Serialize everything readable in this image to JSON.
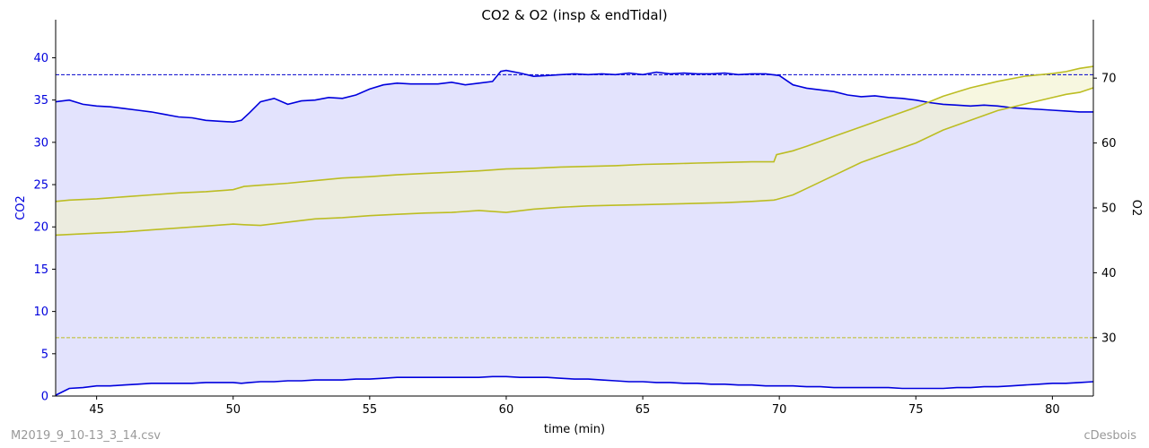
{
  "chart_data": {
    "type": "line",
    "title": "CO2 & O2 (insp & endTidal)",
    "xlabel": "time (min)",
    "ylabel_left": "CO2",
    "ylabel_right": "O2",
    "xlim": [
      43.5,
      81.5
    ],
    "ylim_left": [
      0,
      44.5
    ],
    "ylim_right": [
      21,
      79
    ],
    "x_ticks": [
      45,
      50,
      55,
      60,
      65,
      70,
      75,
      80
    ],
    "y_left_ticks": [
      0,
      5,
      10,
      15,
      20,
      25,
      30,
      35,
      40
    ],
    "y_right_ticks": [
      30,
      40,
      50,
      60,
      70
    ],
    "reference_lines": [
      {
        "axis": "left",
        "value": 38,
        "color": "#0000cc",
        "style": "dashed"
      },
      {
        "axis": "right",
        "value": 30,
        "color": "#bcbd22",
        "style": "dashed"
      }
    ],
    "series": [
      {
        "axis": "left",
        "color": "#0000dd",
        "fill": "#e3e3fd",
        "x": [
          43.5,
          44.0,
          44.5,
          45.0,
          45.5,
          46.0,
          46.5,
          47.0,
          47.5,
          48.0,
          48.5,
          49.0,
          49.5,
          50.0,
          50.3,
          50.6,
          51.0,
          51.5,
          52.0,
          52.5,
          53.0,
          53.5,
          54.0,
          54.5,
          55.0,
          55.5,
          56.0,
          56.5,
          57.0,
          57.5,
          58.0,
          58.5,
          59.0,
          59.5,
          59.8,
          60.0,
          60.5,
          61.0,
          61.5,
          62.0,
          62.5,
          63.0,
          63.5,
          64.0,
          64.5,
          65.0,
          65.5,
          66.0,
          66.5,
          67.0,
          67.5,
          68.0,
          68.5,
          69.0,
          69.5,
          70.0,
          70.5,
          71.0,
          71.5,
          72.0,
          72.5,
          73.0,
          73.5,
          74.0,
          74.5,
          75.0,
          75.5,
          76.0,
          76.5,
          77.0,
          77.5,
          78.0,
          78.5,
          79.0,
          79.5,
          80.0,
          80.5,
          81.0,
          81.5
        ],
        "upper": [
          34.8,
          35.0,
          34.5,
          34.3,
          34.2,
          34.0,
          33.8,
          33.6,
          33.3,
          33.0,
          32.9,
          32.6,
          32.5,
          32.4,
          32.6,
          33.5,
          34.8,
          35.2,
          34.5,
          34.9,
          35.0,
          35.3,
          35.2,
          35.6,
          36.3,
          36.8,
          37.0,
          36.9,
          36.9,
          36.9,
          37.1,
          36.8,
          37.0,
          37.2,
          38.4,
          38.5,
          38.2,
          37.8,
          37.9,
          38.0,
          38.1,
          38.0,
          38.1,
          38.0,
          38.2,
          38.0,
          38.3,
          38.1,
          38.2,
          38.1,
          38.1,
          38.2,
          38.0,
          38.1,
          38.1,
          37.9,
          36.8,
          36.4,
          36.2,
          36.0,
          35.6,
          35.4,
          35.5,
          35.3,
          35.2,
          35.0,
          34.7,
          34.5,
          34.4,
          34.3,
          34.4,
          34.3,
          34.1,
          34.0,
          33.9,
          33.8,
          33.7,
          33.6,
          33.6
        ],
        "lower": [
          0.1,
          0.9,
          1.0,
          1.2,
          1.2,
          1.3,
          1.4,
          1.5,
          1.5,
          1.5,
          1.5,
          1.6,
          1.6,
          1.6,
          1.5,
          1.6,
          1.7,
          1.7,
          1.8,
          1.8,
          1.9,
          1.9,
          1.9,
          2.0,
          2.0,
          2.1,
          2.2,
          2.2,
          2.2,
          2.2,
          2.2,
          2.2,
          2.2,
          2.3,
          2.3,
          2.3,
          2.2,
          2.2,
          2.2,
          2.1,
          2.0,
          2.0,
          1.9,
          1.8,
          1.7,
          1.7,
          1.6,
          1.6,
          1.5,
          1.5,
          1.4,
          1.4,
          1.3,
          1.3,
          1.2,
          1.2,
          1.2,
          1.1,
          1.1,
          1.0,
          1.0,
          1.0,
          1.0,
          1.0,
          0.9,
          0.9,
          0.9,
          0.9,
          1.0,
          1.0,
          1.1,
          1.1,
          1.2,
          1.3,
          1.4,
          1.5,
          1.5,
          1.6,
          1.7
        ]
      },
      {
        "axis": "right",
        "color": "#bcbd22",
        "fill": "#f2f2cc",
        "x": [
          43.5,
          44.0,
          45.0,
          46.0,
          47.0,
          48.0,
          49.0,
          50.0,
          50.4,
          51.0,
          52.0,
          53.0,
          54.0,
          55.0,
          56.0,
          57.0,
          58.0,
          59.0,
          60.0,
          61.0,
          62.0,
          63.0,
          64.0,
          65.0,
          66.0,
          67.0,
          68.0,
          69.0,
          69.8,
          69.9,
          70.5,
          71.0,
          72.0,
          73.0,
          74.0,
          75.0,
          76.0,
          77.0,
          78.0,
          79.0,
          80.0,
          80.5,
          81.0,
          81.5
        ],
        "upper": [
          51.0,
          51.2,
          51.4,
          51.7,
          52.0,
          52.3,
          52.5,
          52.8,
          53.3,
          53.5,
          53.8,
          54.2,
          54.6,
          54.8,
          55.1,
          55.3,
          55.5,
          55.7,
          56.0,
          56.1,
          56.3,
          56.4,
          56.5,
          56.7,
          56.8,
          56.9,
          57.0,
          57.1,
          57.1,
          58.2,
          58.8,
          59.5,
          61.0,
          62.5,
          64.0,
          65.5,
          67.2,
          68.5,
          69.5,
          70.3,
          70.7,
          71.0,
          71.5,
          71.8
        ],
        "lower": [
          45.8,
          45.9,
          46.1,
          46.3,
          46.6,
          46.9,
          47.2,
          47.5,
          47.4,
          47.3,
          47.8,
          48.3,
          48.5,
          48.8,
          49.0,
          49.2,
          49.3,
          49.6,
          49.3,
          49.8,
          50.1,
          50.3,
          50.4,
          50.5,
          50.6,
          50.7,
          50.8,
          51.0,
          51.2,
          51.3,
          52.0,
          53.0,
          55.0,
          57.0,
          58.5,
          60.0,
          62.0,
          63.5,
          65.0,
          66.0,
          67.0,
          67.5,
          67.8,
          68.5
        ]
      }
    ]
  },
  "footer": {
    "file": "M2019_9_10-13_3_14.csv",
    "author": "cDesbois"
  }
}
